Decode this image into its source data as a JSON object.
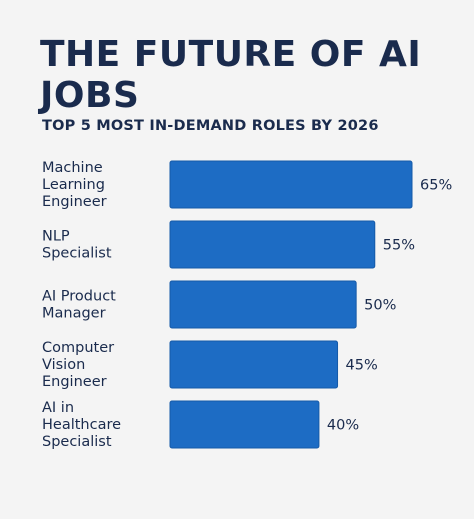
{
  "header": {
    "title": "THE FUTURE OF AI JOBS",
    "subtitle": "TOP 5 MOST IN-DEMAND ROLES BY 2026"
  },
  "colors": {
    "bar": "#1d6cc4",
    "bar_stroke": "#155aa8",
    "background": "#f4f4f4",
    "text": "#1a2b4d"
  },
  "chart_data": {
    "type": "bar",
    "orientation": "horizontal",
    "title": "THE FUTURE OF AI JOBS",
    "subtitle": "TOP 5 MOST IN-DEMAND ROLES BY 2026",
    "categories": [
      "Machine Learning Engineer",
      "NLP Specialist",
      "AI Product Manager",
      "Computer Vision Engineer",
      "AI in Healthcare Specialist"
    ],
    "category_lines": [
      [
        "Machine",
        "Learning",
        "Engineer"
      ],
      [
        "NLP",
        "Specialist"
      ],
      [
        "AI Product",
        "Manager"
      ],
      [
        "Computer",
        "Vision",
        "Engineer"
      ],
      [
        "AI in",
        "Healthcare",
        "Specialist"
      ]
    ],
    "values": [
      65,
      55,
      50,
      45,
      40
    ],
    "value_labels": [
      "65%",
      "55%",
      "50%",
      "45%",
      "40%"
    ],
    "unit": "%",
    "xlim": [
      0,
      65
    ],
    "grid": false,
    "legend": "none"
  }
}
